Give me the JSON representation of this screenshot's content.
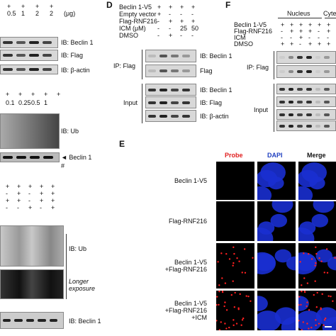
{
  "panel_a": {
    "rows": [
      [
        "+",
        "+",
        "+",
        "+"
      ],
      [
        "0.5",
        "1",
        "2",
        "2"
      ]
    ],
    "unit": "(μg)",
    "blot_labels": [
      "IB: Beclin 1",
      "IB: Flag",
      "IB: β-actin"
    ]
  },
  "panel_b": {
    "rows": [
      [
        "+",
        "+",
        "+",
        "+",
        "+"
      ],
      [
        "0.1",
        "0.25",
        "0.5",
        "1"
      ]
    ],
    "blot_label": "IB: Ub",
    "band_label": "◄ Beclin 1",
    "mark": "#"
  },
  "panel_c": {
    "rows": [
      [
        "+",
        "+",
        "+",
        "+",
        "+"
      ],
      [
        "-",
        "+",
        "-",
        "+",
        "+"
      ],
      [
        "+",
        "+",
        "-",
        "+",
        "+"
      ],
      [
        "-",
        "-",
        "+",
        "-",
        "+"
      ]
    ],
    "blot_labels": [
      "IB: Ub",
      "Longer exposure",
      "IB: Beclin 1"
    ]
  },
  "panel_d": {
    "letter": "D",
    "conditions": [
      {
        "label": "Beclin 1-V5",
        "signs": [
          "+",
          "+",
          "+",
          "+"
        ]
      },
      {
        "label": "Empty vector",
        "signs": [
          "+",
          "-",
          "-",
          "-"
        ]
      },
      {
        "label": "Flag-RNF216",
        "signs": [
          "-",
          "+",
          "+",
          "+"
        ]
      },
      {
        "label": "ICM (μM)",
        "signs": [
          "-",
          "-",
          "25",
          "50"
        ]
      },
      {
        "label": "DMSO",
        "signs": [
          "-",
          "+",
          "-",
          "-"
        ]
      }
    ],
    "ip_label": "IP: Flag",
    "input_label": "Input",
    "ip_blots": [
      "IB: Beclin 1",
      "Flag"
    ],
    "input_blots": [
      "IB: Beclin 1",
      "IB: Flag",
      "IB: β-actin"
    ]
  },
  "panel_f": {
    "letter": "F",
    "fractions": [
      "Nucleus",
      "Cyte"
    ],
    "conditions": [
      {
        "label": "Beclin 1-V5",
        "signs": [
          "+",
          "+",
          "+",
          "+",
          "+",
          "+"
        ]
      },
      {
        "label": "Flag-RNF216",
        "signs": [
          "-",
          "+",
          "+",
          "+",
          "-",
          "+"
        ]
      },
      {
        "label": "ICM",
        "signs": [
          "-",
          "-",
          "+",
          "-",
          "-",
          "-"
        ]
      },
      {
        "label": "DMSO",
        "signs": [
          "+",
          "+",
          "-",
          "+",
          "+",
          "+"
        ]
      }
    ],
    "ip_label": "IP: Flag",
    "input_label": "Input"
  },
  "panel_e": {
    "letter": "E",
    "columns": [
      "Probe",
      "DAPI",
      "Merge"
    ],
    "rows": [
      [
        "Beclin 1-V5"
      ],
      [
        "Flag-RNF216"
      ],
      [
        "Beclin 1-V5",
        "+Flag-RNF216"
      ],
      [
        "Beclin 1-V5",
        "+Flag-RNF216",
        "+ICM"
      ]
    ]
  }
}
